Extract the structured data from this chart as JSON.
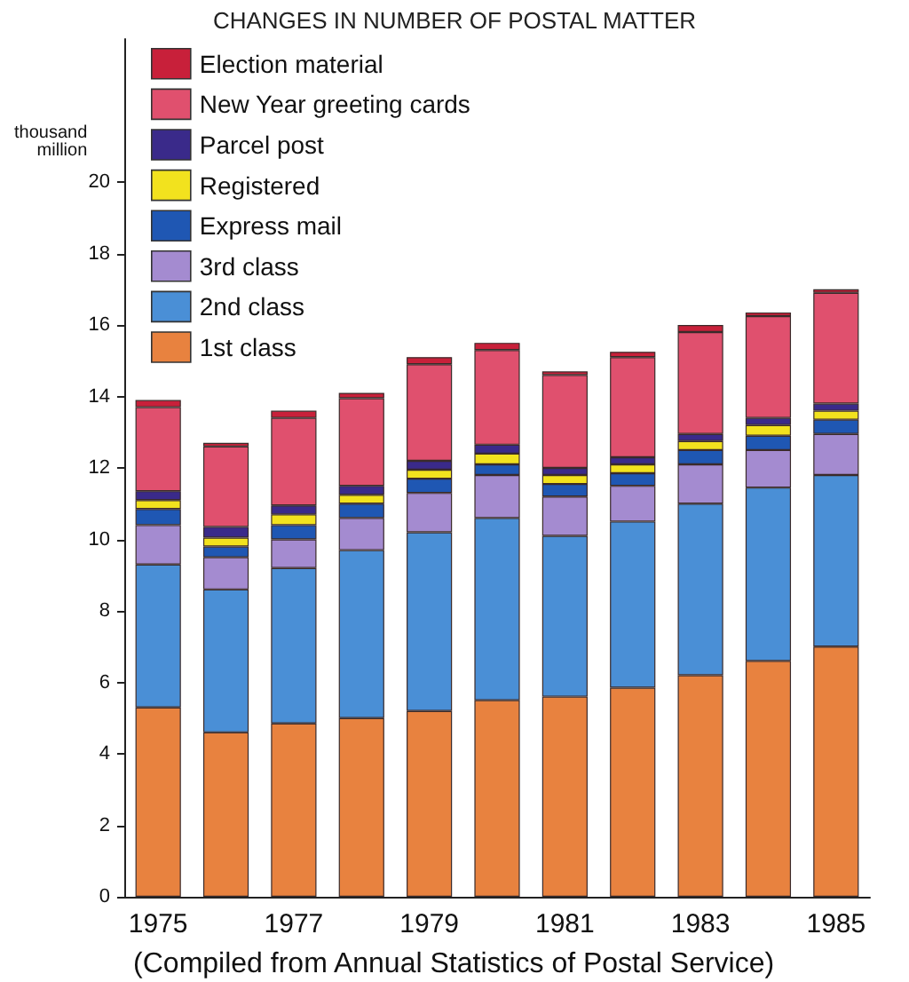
{
  "chart_data": {
    "type": "bar",
    "title": "CHANGES IN NUMBER OF POSTAL MATTER",
    "ylabel": "thousand million",
    "categories": [
      "1975",
      null,
      "1977",
      null,
      "1979",
      null,
      "1981",
      null,
      "1983",
      null,
      "1985"
    ],
    "stacked": true,
    "series": [
      {
        "name": "1st class",
        "color": "#e8823f",
        "values": [
          5.3,
          4.6,
          4.85,
          5.0,
          5.2,
          5.5,
          5.6,
          5.85,
          6.2,
          6.6,
          7.0
        ]
      },
      {
        "name": "2nd class",
        "color": "#4a8fd6",
        "values": [
          4.0,
          4.0,
          4.35,
          4.7,
          5.0,
          5.1,
          4.5,
          4.65,
          4.8,
          4.85,
          4.8
        ]
      },
      {
        "name": "3rd class",
        "color": "#a48bd0",
        "values": [
          1.1,
          0.9,
          0.8,
          0.9,
          1.1,
          1.2,
          1.1,
          1.0,
          1.1,
          1.05,
          1.15
        ]
      },
      {
        "name": "Express mail",
        "color": "#1f57b3",
        "values": [
          0.45,
          0.3,
          0.4,
          0.4,
          0.4,
          0.3,
          0.35,
          0.35,
          0.4,
          0.4,
          0.4
        ]
      },
      {
        "name": "Registered",
        "color": "#f2e21e",
        "values": [
          0.25,
          0.25,
          0.3,
          0.25,
          0.25,
          0.3,
          0.25,
          0.25,
          0.25,
          0.3,
          0.25
        ]
      },
      {
        "name": "Parcel post",
        "color": "#3a2a8a",
        "values": [
          0.25,
          0.3,
          0.25,
          0.25,
          0.25,
          0.25,
          0.2,
          0.2,
          0.2,
          0.2,
          0.2
        ]
      },
      {
        "name": "New Year greeting cards",
        "color": "#e0506e",
        "values": [
          2.35,
          2.25,
          2.45,
          2.45,
          2.7,
          2.65,
          2.6,
          2.8,
          2.85,
          2.85,
          3.1
        ]
      },
      {
        "name": "Election material",
        "color": "#c8203a",
        "values": [
          0.2,
          0.1,
          0.2,
          0.15,
          0.2,
          0.2,
          0.1,
          0.15,
          0.2,
          0.1,
          0.1
        ]
      }
    ],
    "ylim": [
      0,
      24
    ],
    "yticks": [
      0,
      2,
      4,
      6,
      8,
      10,
      12,
      14,
      16,
      18,
      20
    ],
    "grid": false,
    "legend": "top left",
    "annotations": [
      "(Compiled from Annual Statistics of Postal Service)"
    ]
  }
}
